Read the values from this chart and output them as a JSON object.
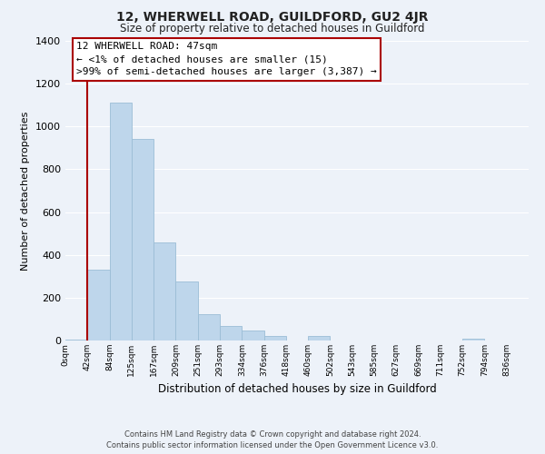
{
  "title": "12, WHERWELL ROAD, GUILDFORD, GU2 4JR",
  "subtitle": "Size of property relative to detached houses in Guildford",
  "xlabel": "Distribution of detached houses by size in Guildford",
  "ylabel": "Number of detached properties",
  "bar_labels": [
    "0sqm",
    "42sqm",
    "84sqm",
    "125sqm",
    "167sqm",
    "209sqm",
    "251sqm",
    "293sqm",
    "334sqm",
    "376sqm",
    "418sqm",
    "460sqm",
    "502sqm",
    "543sqm",
    "585sqm",
    "627sqm",
    "669sqm",
    "711sqm",
    "752sqm",
    "794sqm",
    "836sqm"
  ],
  "bar_values": [
    5,
    330,
    1110,
    940,
    460,
    275,
    125,
    68,
    47,
    20,
    0,
    20,
    0,
    0,
    0,
    0,
    0,
    0,
    10,
    0,
    0
  ],
  "bar_color": "#bed6eb",
  "bar_edge_color": "#9bbdd6",
  "highlight_color": "#aa0000",
  "ylim": [
    0,
    1400
  ],
  "yticks": [
    0,
    200,
    400,
    600,
    800,
    1000,
    1200,
    1400
  ],
  "annotation_title": "12 WHERWELL ROAD: 47sqm",
  "annotation_line1": "← <1% of detached houses are smaller (15)",
  "annotation_line2": ">99% of semi-detached houses are larger (3,387) →",
  "annotation_box_color": "#ffffff",
  "annotation_box_edge": "#aa0000",
  "footer_line1": "Contains HM Land Registry data © Crown copyright and database right 2024.",
  "footer_line2": "Contains public sector information licensed under the Open Government Licence v3.0.",
  "bg_color": "#edf2f9",
  "grid_color": "#ffffff",
  "fig_width": 6.0,
  "fig_height": 5.0
}
